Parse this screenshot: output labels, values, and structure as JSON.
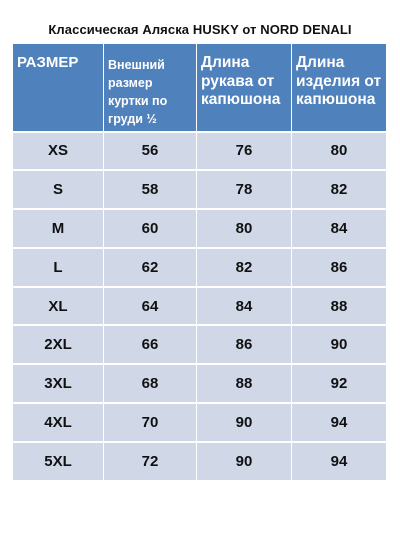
{
  "title": "Классическая Аляска HUSKY от NORD DENALI",
  "table": {
    "headers": [
      "РАЗМЕР",
      "Внешний размер куртки по груди ½",
      "Длина рукава от капюшона",
      "Длина изделия от капюшона"
    ],
    "rows": [
      [
        "XS",
        "56",
        "76",
        "80"
      ],
      [
        "S",
        "58",
        "78",
        "82"
      ],
      [
        "M",
        "60",
        "80",
        "84"
      ],
      [
        "L",
        "62",
        "82",
        "86"
      ],
      [
        "XL",
        "64",
        "84",
        "88"
      ],
      [
        "2XL",
        "66",
        "86",
        "90"
      ],
      [
        "3XL",
        "68",
        "88",
        "92"
      ],
      [
        "4XL",
        "70",
        "90",
        "94"
      ],
      [
        "5XL",
        "72",
        "90",
        "94"
      ]
    ]
  },
  "colors": {
    "header_bg": "#4f81bd",
    "row_bg": "#d0d8e8"
  }
}
